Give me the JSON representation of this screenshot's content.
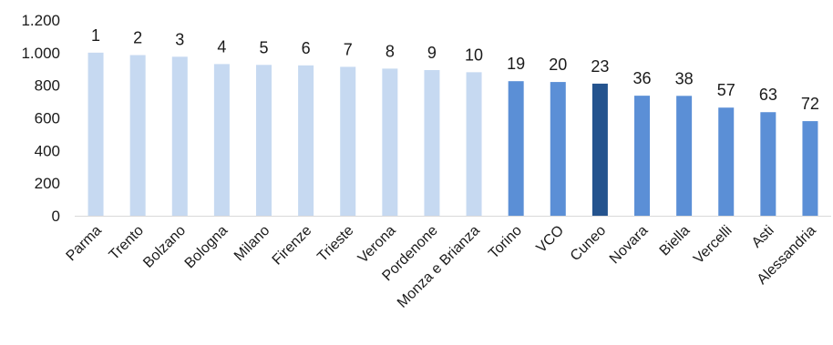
{
  "chart_data": {
    "type": "bar",
    "title": "",
    "xlabel": "",
    "ylabel": "",
    "ylim": [
      0,
      1200
    ],
    "yticks": [
      0,
      200,
      400,
      600,
      800,
      1000,
      1200
    ],
    "ytick_labels": [
      "0",
      "200",
      "400",
      "600",
      "800",
      "1.000",
      "1.200"
    ],
    "grid": false,
    "categories": [
      "Parma",
      "Trento",
      "Bolzano",
      "Bologna",
      "Milano",
      "Firenze",
      "Trieste",
      "Verona",
      "Pordenone",
      "Monza e Brianza",
      "Torino",
      "VCO",
      "Cuneo",
      "Novara",
      "Biella",
      "Vercelli",
      "Asti",
      "Alessandria"
    ],
    "values": [
      1000,
      985,
      975,
      930,
      925,
      922,
      913,
      902,
      893,
      880,
      825,
      820,
      810,
      736,
      735,
      663,
      635,
      580
    ],
    "data_labels": [
      "1",
      "2",
      "3",
      "4",
      "5",
      "6",
      "7",
      "8",
      "9",
      "10",
      "19",
      "20",
      "23",
      "36",
      "38",
      "57",
      "63",
      "72"
    ],
    "bar_groups": [
      "top10",
      "top10",
      "top10",
      "top10",
      "top10",
      "top10",
      "top10",
      "top10",
      "top10",
      "top10",
      "piemonte",
      "piemonte",
      "highlight",
      "piemonte",
      "piemonte",
      "piemonte",
      "piemonte",
      "piemonte"
    ],
    "colors": {
      "top10": "#c6d9f1",
      "piemonte": "#5b8fd6",
      "highlight": "#24538e",
      "axis": "#d9d9d9"
    }
  }
}
